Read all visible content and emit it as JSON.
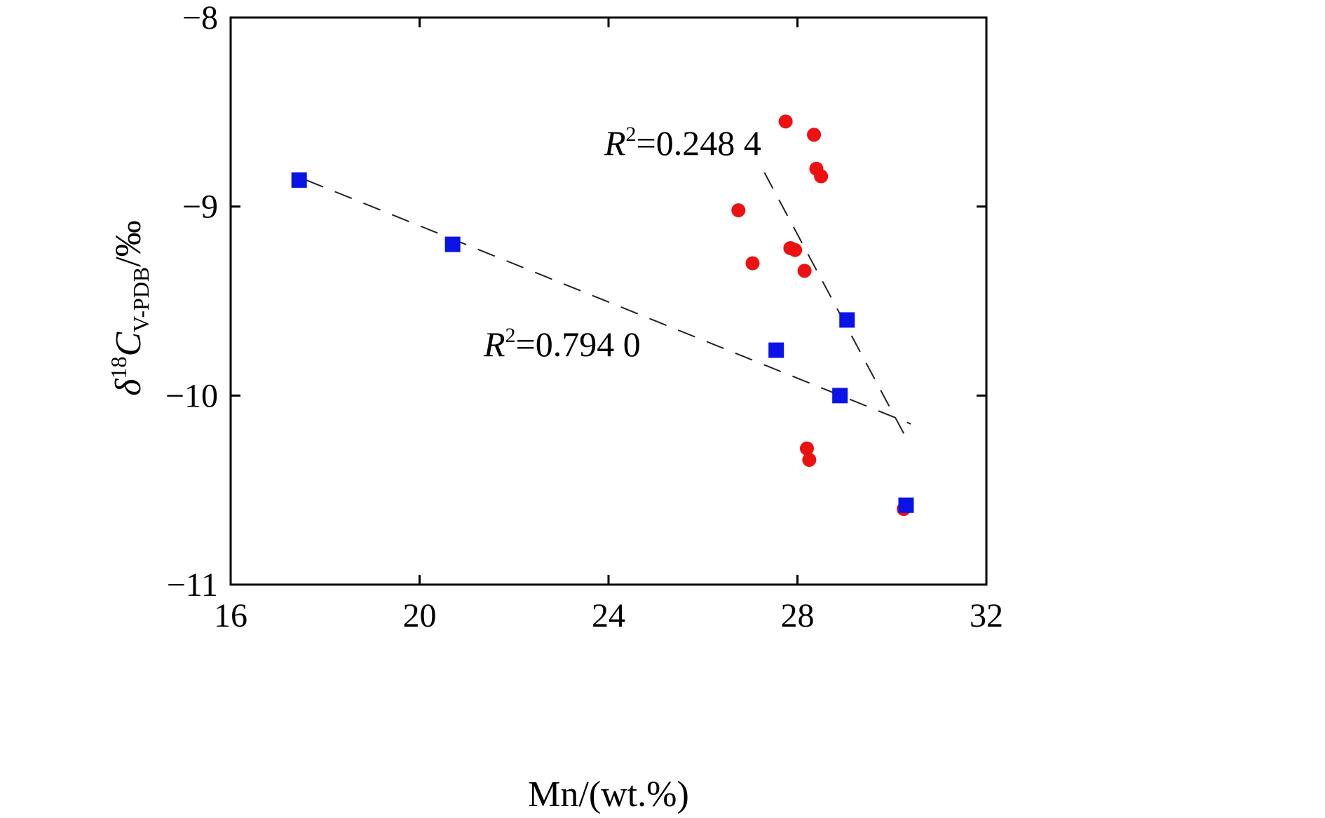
{
  "chart_data": {
    "type": "scatter",
    "xlabel": "Mn/(wt.%)",
    "ylabel": {
      "symbol": "δ",
      "superscript": "18",
      "variable": "C",
      "subscript": "V-PDB",
      "unit": "/‰"
    },
    "xlim": [
      16,
      32
    ],
    "ylim": [
      -11,
      -8
    ],
    "xticks": [
      16,
      20,
      24,
      28,
      32
    ],
    "xtick_labels": [
      "16",
      "20",
      "24",
      "28",
      "32"
    ],
    "yticks": [
      -8,
      -9,
      -10,
      -11
    ],
    "ytick_labels": [
      "−8",
      "−9",
      "−10",
      "−11"
    ],
    "grid": false,
    "series": [
      {
        "marker": "circle",
        "color": "#ee1111",
        "points": [
          [
            27.75,
            -8.55
          ],
          [
            28.35,
            -8.62
          ],
          [
            28.4,
            -8.8
          ],
          [
            28.5,
            -8.84
          ],
          [
            26.75,
            -9.02
          ],
          [
            27.85,
            -9.22
          ],
          [
            27.95,
            -9.23
          ],
          [
            27.05,
            -9.3
          ],
          [
            28.15,
            -9.34
          ],
          [
            28.2,
            -10.28
          ],
          [
            28.25,
            -10.34
          ],
          [
            30.25,
            -10.6
          ]
        ],
        "trendline": {
          "from": [
            27.3,
            -8.82
          ],
          "to": [
            30.25,
            -10.2
          ]
        },
        "annotation": {
          "prefix": "R",
          "sup": "2",
          "text": "=0.248 4"
        }
      },
      {
        "marker": "square",
        "color": "#0a14e6",
        "points": [
          [
            17.45,
            -8.86
          ],
          [
            20.7,
            -9.2
          ],
          [
            27.55,
            -9.76
          ],
          [
            28.9,
            -10.0
          ],
          [
            29.05,
            -9.6
          ],
          [
            30.3,
            -10.58
          ]
        ],
        "trendline": {
          "from": [
            17.6,
            -8.86
          ],
          "to": [
            30.4,
            -10.15
          ]
        },
        "annotation": {
          "prefix": "R",
          "sup": "2",
          "text": "=0.794 0"
        }
      }
    ]
  }
}
